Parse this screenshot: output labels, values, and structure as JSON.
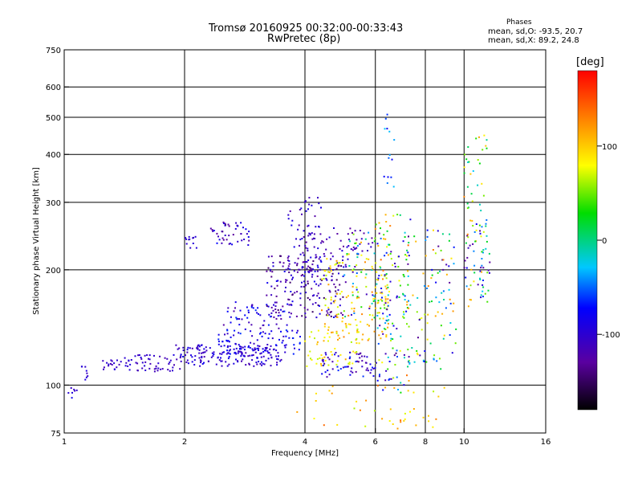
{
  "chart_data": {
    "type": "scatter",
    "title": "Tromsø 20160925 00:32:00-00:33:43",
    "subtitle": "RwPretec (8p)",
    "xlabel": "Frequency [MHz]",
    "ylabel": "Stationary phase Virtual Height [km]",
    "x_scale": "log",
    "y_scale": "log",
    "xlim": [
      1,
      16
    ],
    "ylim": [
      75,
      750
    ],
    "x_ticks": [
      1,
      2,
      4,
      6,
      8,
      10,
      16
    ],
    "x_tick_labels": [
      "1",
      "2",
      "4",
      "6",
      "8",
      "10",
      "16"
    ],
    "x_gridlines": [
      2,
      4,
      6,
      8,
      10
    ],
    "y_ticks": [
      75,
      100,
      200,
      300,
      400,
      500,
      600,
      750
    ],
    "y_tick_labels": [
      "75",
      "100",
      "200",
      "300",
      "400",
      "500",
      "600",
      "750"
    ],
    "y_gridlines": [
      100,
      200,
      300,
      400,
      500,
      600
    ],
    "grid": true,
    "legend": {
      "title": "Phases",
      "entries": [
        "mean, sd,O:  -93.5, 20.7",
        "mean, sd,X:  89.2, 24.8"
      ],
      "placement": "top-right"
    },
    "colorbar": {
      "label": "[deg]",
      "range": [
        -180,
        180
      ],
      "ticks": [
        100,
        0,
        -100
      ],
      "tick_labels": [
        "100",
        "0",
        "-100"
      ],
      "placement": "right"
    },
    "clusters": [
      {
        "x": [
          0.95,
          1.1
        ],
        "y": [
          92,
          100
        ],
        "c": [
          -110,
          -80
        ],
        "n": 10
      },
      {
        "x": [
          1.1,
          1.15
        ],
        "y": [
          102,
          112
        ],
        "c": [
          -110,
          -90
        ],
        "n": 8
      },
      {
        "x": [
          1.25,
          1.95
        ],
        "y": [
          108,
          120
        ],
        "c": [
          -120,
          -90
        ],
        "n": 70
      },
      {
        "x": [
          1.9,
          3.5
        ],
        "y": [
          112,
          128
        ],
        "c": [
          -120,
          -80
        ],
        "n": 170
      },
      {
        "x": [
          2.4,
          3.9
        ],
        "y": [
          120,
          140
        ],
        "c": [
          -110,
          -60
        ],
        "n": 90
      },
      {
        "x": [
          2.5,
          3.7
        ],
        "y": [
          140,
          165
        ],
        "c": [
          -130,
          -60
        ],
        "n": 55
      },
      {
        "x": [
          3.2,
          5.0
        ],
        "y": [
          150,
          220
        ],
        "c": [
          -150,
          -80
        ],
        "n": 180
      },
      {
        "x": [
          3.6,
          4.4
        ],
        "y": [
          180,
          310
        ],
        "c": [
          -130,
          -80
        ],
        "n": 75
      },
      {
        "x": [
          2.0,
          2.15
        ],
        "y": [
          228,
          245
        ],
        "c": [
          -110,
          -90
        ],
        "n": 12
      },
      {
        "x": [
          2.3,
          2.9
        ],
        "y": [
          232,
          268
        ],
        "c": [
          -140,
          -70
        ],
        "n": 45
      },
      {
        "x": [
          4.4,
          6.5
        ],
        "y": [
          130,
          220
        ],
        "c": [
          60,
          130
        ],
        "n": 120
      },
      {
        "x": [
          4.0,
          6.0
        ],
        "y": [
          220,
          260
        ],
        "c": [
          -130,
          -90
        ],
        "n": 45
      },
      {
        "x": [
          4.0,
          5.5
        ],
        "y": [
          112,
          140
        ],
        "c": [
          60,
          120
        ],
        "n": 60
      },
      {
        "x": [
          4.4,
          6.0
        ],
        "y": [
          105,
          122
        ],
        "c": [
          -130,
          -60
        ],
        "n": 60
      },
      {
        "x": [
          5.0,
          6.5
        ],
        "y": [
          150,
          250
        ],
        "c": [
          -130,
          120
        ],
        "n": 80
      },
      {
        "x": [
          6.0,
          7.4
        ],
        "y": [
          95,
          280
        ],
        "c": [
          -140,
          140
        ],
        "n": 140
      },
      {
        "x": [
          6.3,
          6.7
        ],
        "y": [
          320,
          560
        ],
        "c": [
          -80,
          -20
        ],
        "n": 14
      },
      {
        "x": [
          7.2,
          9.6
        ],
        "y": [
          110,
          260
        ],
        "c": [
          -140,
          140
        ],
        "n": 100
      },
      {
        "x": [
          10.0,
          11.6
        ],
        "y": [
          160,
          270
        ],
        "c": [
          -140,
          130
        ],
        "n": 70
      },
      {
        "x": [
          10.0,
          11.4
        ],
        "y": [
          280,
          460
        ],
        "c": [
          -40,
          150
        ],
        "n": 30
      },
      {
        "x": [
          3.8,
          9.0
        ],
        "y": [
          76,
          100
        ],
        "c": [
          60,
          150
        ],
        "n": 40
      }
    ]
  }
}
